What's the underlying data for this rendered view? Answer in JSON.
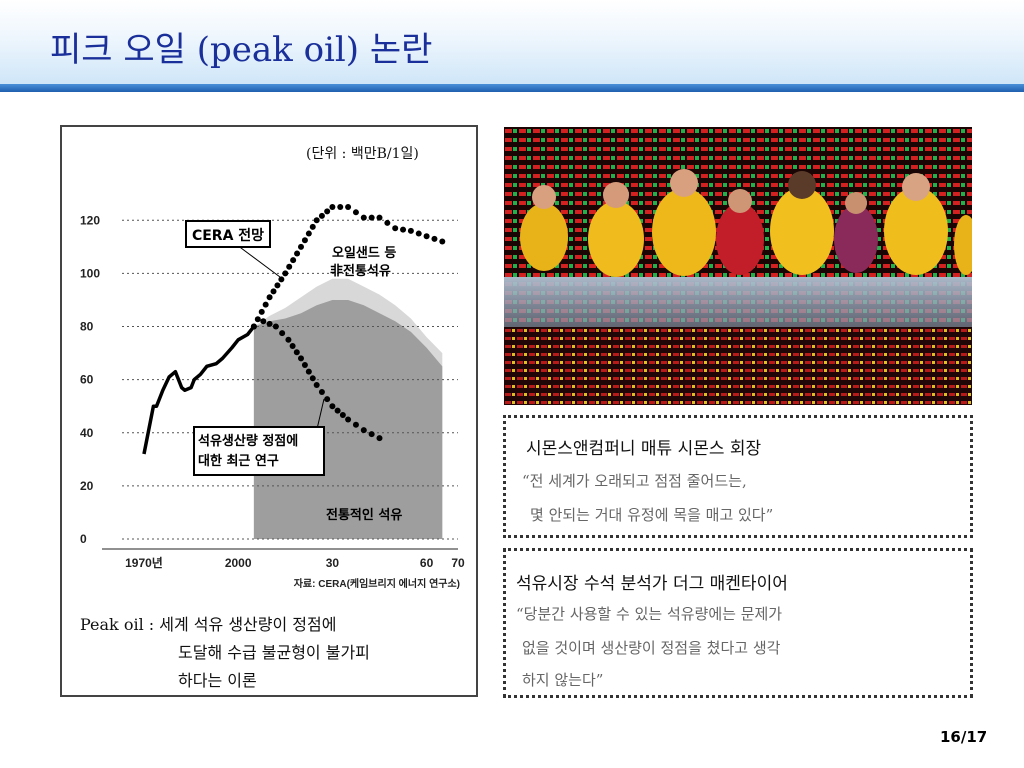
{
  "slide": {
    "title": "피크 오일 (peak oil) 논란",
    "page_number": "16/17"
  },
  "chart_data": {
    "type": "line",
    "unit_note": "(단위 : 백만B/1일)",
    "x_ticks": [
      "1970년",
      "2000",
      "30",
      "60",
      "70"
    ],
    "y_ticks": [
      "0",
      "20",
      "40",
      "60",
      "80",
      "100",
      "120"
    ],
    "ylim": [
      0,
      125
    ],
    "xlim": [
      1963,
      2070
    ],
    "source": "자료: CERA(케임브리지 에너지 연구소)",
    "annotations": [
      "CERA 전망",
      "오일샌드 등 非전통석유",
      "석유생산량 정점에 대한 최근 연구",
      "전통적인 석유"
    ],
    "series": [
      {
        "name": "historical",
        "style": "solid",
        "points": [
          [
            1970,
            32
          ],
          [
            1973,
            50
          ],
          [
            1974,
            50
          ],
          [
            1975,
            53
          ],
          [
            1976,
            56
          ],
          [
            1978,
            61
          ],
          [
            1980,
            63
          ],
          [
            1982,
            57
          ],
          [
            1983,
            56
          ],
          [
            1985,
            57
          ],
          [
            1986,
            60
          ],
          [
            1988,
            62
          ],
          [
            1990,
            65
          ],
          [
            1993,
            66
          ],
          [
            1995,
            68
          ],
          [
            1998,
            72
          ],
          [
            2000,
            75
          ],
          [
            2003,
            77
          ],
          [
            2005,
            80
          ]
        ]
      },
      {
        "name": "CERA 전망",
        "style": "dotted",
        "points": [
          [
            2005,
            80
          ],
          [
            2010,
            91
          ],
          [
            2015,
            100
          ],
          [
            2020,
            110
          ],
          [
            2025,
            120
          ],
          [
            2030,
            125
          ],
          [
            2035,
            125
          ],
          [
            2040,
            121
          ],
          [
            2045,
            121
          ],
          [
            2050,
            117
          ],
          [
            2055,
            116
          ],
          [
            2060,
            114
          ],
          [
            2065,
            112
          ]
        ]
      },
      {
        "name": "석유생산량 정점에 대한 최근 연구",
        "style": "dotted",
        "points": [
          [
            2005,
            80
          ],
          [
            2008,
            82
          ],
          [
            2012,
            80
          ],
          [
            2016,
            75
          ],
          [
            2020,
            68
          ],
          [
            2025,
            58
          ],
          [
            2030,
            50
          ],
          [
            2035,
            45
          ],
          [
            2040,
            41
          ],
          [
            2045,
            38
          ]
        ]
      }
    ],
    "areas": [
      {
        "name": "오일샌드 등 非전통석유",
        "color": "#d8d8d8",
        "points": [
          [
            2005,
            80
          ],
          [
            2010,
            84
          ],
          [
            2015,
            87
          ],
          [
            2020,
            91
          ],
          [
            2025,
            95
          ],
          [
            2030,
            98
          ],
          [
            2035,
            98
          ],
          [
            2040,
            95
          ],
          [
            2045,
            92
          ],
          [
            2050,
            88
          ],
          [
            2055,
            83
          ],
          [
            2060,
            76
          ],
          [
            2065,
            70
          ]
        ]
      },
      {
        "name": "전통적인 석유",
        "color": "#9e9e9e",
        "points": [
          [
            2005,
            80
          ],
          [
            2010,
            82
          ],
          [
            2015,
            83
          ],
          [
            2020,
            85
          ],
          [
            2025,
            88
          ],
          [
            2030,
            90
          ],
          [
            2035,
            90
          ],
          [
            2040,
            88
          ],
          [
            2045,
            85
          ],
          [
            2050,
            82
          ],
          [
            2055,
            78
          ],
          [
            2060,
            72
          ],
          [
            2065,
            65
          ]
        ]
      }
    ]
  },
  "definition": {
    "line1": "Peak oil :  세계 석유 생산량이 정점에",
    "line2": "도달해 수급 불균형이 불가피",
    "line3": "하다는 이론"
  },
  "quote1": {
    "name": "시몬스앤컴퍼니 매튜 시몬스 회장",
    "line1": "“전 세계가 오래되고 점점 줄어드는,",
    "line2": "몇 안되는 거대 유정에 목을 매고 있다”"
  },
  "quote2": {
    "name": "석유시장 수석 분석가 더그 매켄타이어",
    "line1": "“당분간 사용할 수 있는 석유량에는 문제가",
    "line2": "없을 것이며 생산량이 정점을 쳤다고 생각",
    "line3": "하지 않는다”"
  },
  "colors": {
    "title": "#1a2f9a",
    "header_bar": "#2a6dc2"
  }
}
